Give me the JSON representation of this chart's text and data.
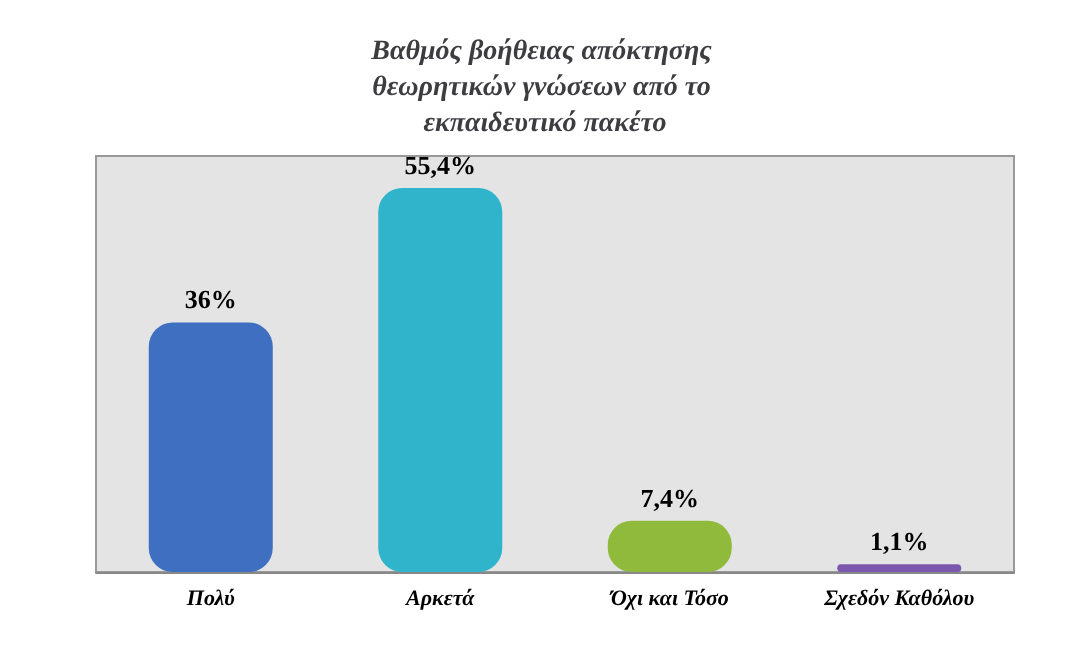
{
  "chart_data": {
    "type": "bar",
    "title": "Βαθμός βοήθειας απόκτησης θεωρητικών γνώσεων από το εκπαιδευτικό πακέτο",
    "categories": [
      "Πολύ",
      "Αρκετά",
      "Όχι και Τόσο",
      "Σχεδόν Καθόλου"
    ],
    "values": [
      36,
      55.4,
      7.4,
      1.1
    ],
    "colors": [
      "#3f6fc0",
      "#2fb4cc",
      "#8fba3c",
      "#7b58ae"
    ],
    "value_labels": [
      "36%",
      "55,4%",
      "7,4%",
      "1,1%"
    ]
  }
}
